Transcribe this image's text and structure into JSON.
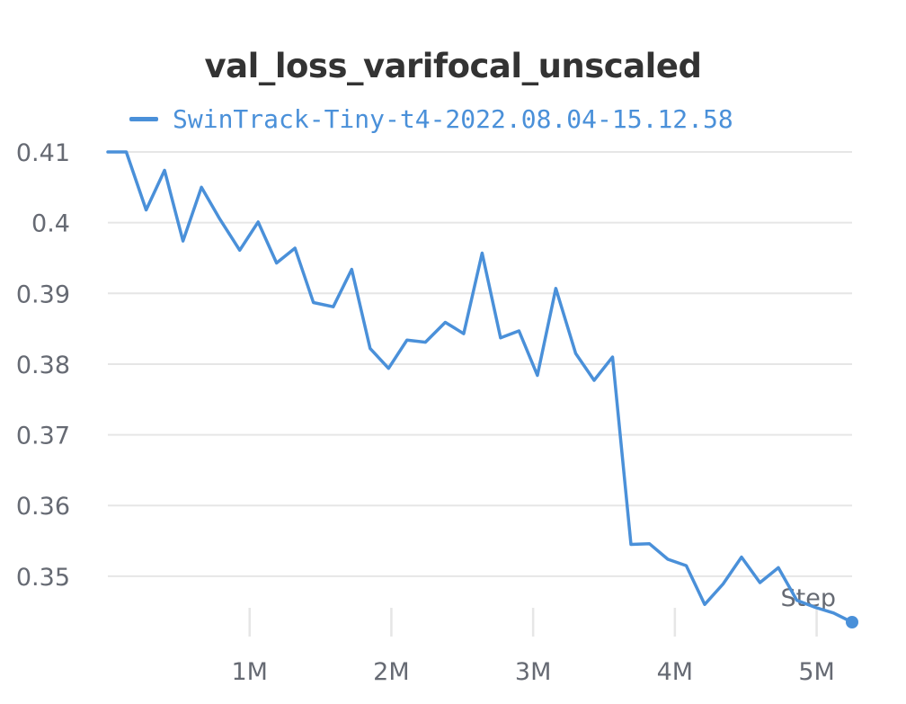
{
  "chart_data": {
    "type": "line",
    "title": "val_loss_varifocal_unscaled",
    "xlabel": "Step",
    "ylabel": "",
    "xlim": [
      0,
      5250000
    ],
    "ylim": [
      0.3435,
      0.41
    ],
    "yticks": [
      0.35,
      0.36,
      0.37,
      0.38,
      0.39,
      0.4,
      0.41
    ],
    "ytick_labels": [
      "0.35",
      "0.36",
      "0.37",
      "0.38",
      "0.39",
      "0.4",
      "0.41"
    ],
    "xticks": [
      1000000,
      2000000,
      3000000,
      4000000,
      5000000
    ],
    "xtick_labels": [
      "1M",
      "2M",
      "3M",
      "4M",
      "5M"
    ],
    "grid": true,
    "legend": "top",
    "series": [
      {
        "name": "SwinTrack-Tiny-t4-2022.08.04-15.12.58",
        "color": "#4a90d9",
        "x": [
          0,
          130000,
          270000,
          400000,
          530000,
          660000,
          790000,
          930000,
          1060000,
          1190000,
          1320000,
          1450000,
          1590000,
          1720000,
          1850000,
          1980000,
          2110000,
          2240000,
          2380000,
          2510000,
          2640000,
          2770000,
          2900000,
          3030000,
          3160000,
          3300000,
          3430000,
          3560000,
          3690000,
          3820000,
          3950000,
          4080000,
          4210000,
          4340000,
          4470000,
          4600000,
          4730000,
          4860000,
          4990000,
          5120000,
          5250000
        ],
        "y": [
          0.41,
          0.41,
          0.4018,
          0.4074,
          0.3974,
          0.405,
          0.4005,
          0.3961,
          0.4001,
          0.3943,
          0.3964,
          0.3887,
          0.3881,
          0.3934,
          0.3822,
          0.3794,
          0.3834,
          0.3831,
          0.3859,
          0.3843,
          0.3957,
          0.3837,
          0.3847,
          0.3784,
          0.3907,
          0.3815,
          0.3777,
          0.381,
          0.3545,
          0.3546,
          0.3524,
          0.3515,
          0.346,
          0.3489,
          0.3527,
          0.3491,
          0.3512,
          0.3466,
          0.3456,
          0.3448,
          0.3435
        ]
      }
    ]
  }
}
